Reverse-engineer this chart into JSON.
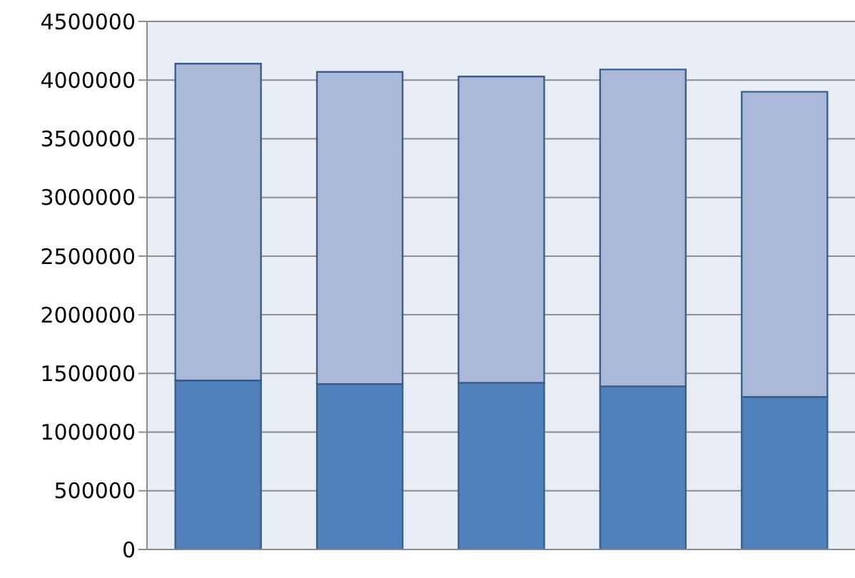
{
  "chart_data": {
    "type": "bar",
    "stacked": true,
    "categories": [
      null,
      null,
      null,
      null,
      null
    ],
    "series": [
      {
        "color": "#4f81bd",
        "values": [
          1440000,
          1410000,
          1420000,
          1390000,
          1300000
        ]
      },
      {
        "color": "#aab9d8",
        "values": [
          2700000,
          2660000,
          2610000,
          2700000,
          2600000
        ]
      }
    ],
    "ylim": [
      0,
      4500000
    ],
    "yticks": [
      0,
      500000,
      1000000,
      1500000,
      2000000,
      2500000,
      3000000,
      3500000,
      4000000,
      4500000
    ],
    "grid": "y",
    "tick_labels": "y"
  }
}
